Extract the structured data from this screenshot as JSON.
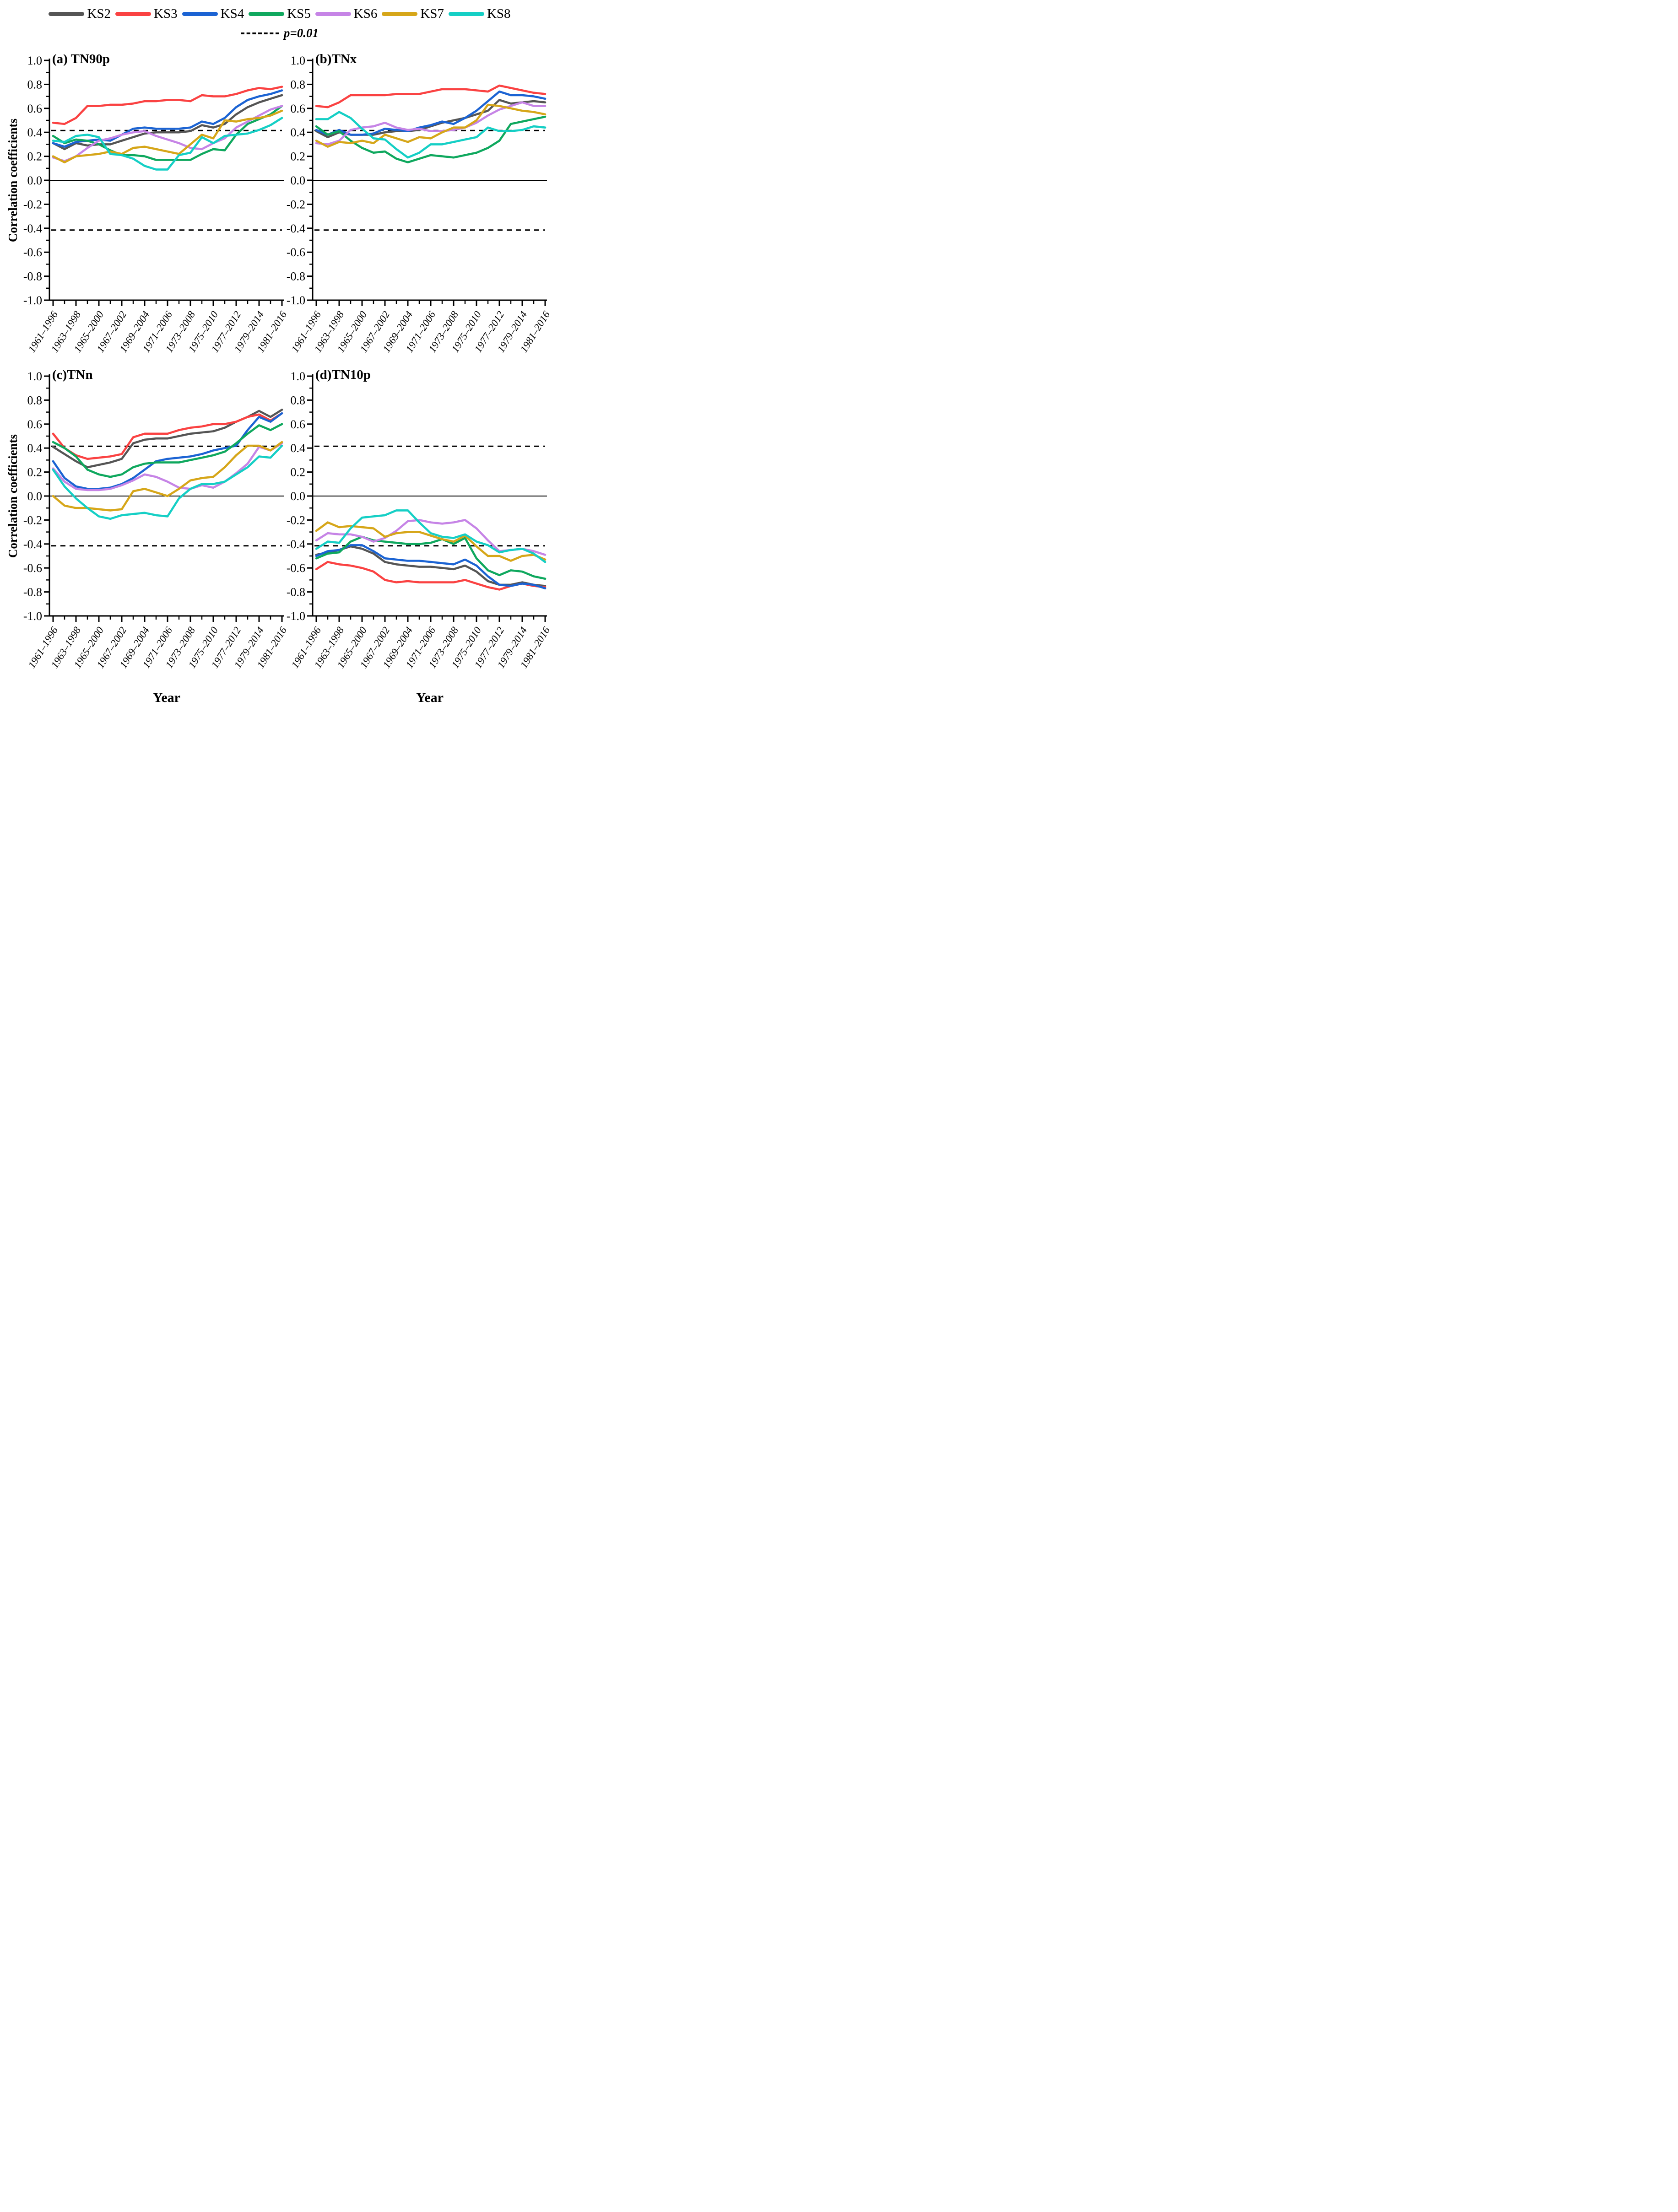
{
  "legend": {
    "series": [
      {
        "label": "KS2",
        "color": "#555555"
      },
      {
        "label": "KS3",
        "color": "#FA4242"
      },
      {
        "label": "KS4",
        "color": "#1B63D3"
      },
      {
        "label": "KS5",
        "color": "#0FA85E"
      },
      {
        "label": "KS6",
        "color": "#C684E6"
      },
      {
        "label": "KS7",
        "color": "#D6A619"
      },
      {
        "label": "KS8",
        "color": "#15CFC5"
      }
    ],
    "significance": {
      "label": "p=0.01",
      "color": "#000000"
    }
  },
  "axes": {
    "ylabel": "Correlation coefficients",
    "xlabel": "Year",
    "ylim": [
      -1.0,
      1.0
    ],
    "ytick_step": 0.2,
    "ytick_labels": [
      "1.0",
      "0.8",
      "0.6",
      "0.4",
      "0.2",
      "0.0",
      "-0.2",
      "-0.4",
      "-0.6",
      "-0.8",
      "-1.0"
    ],
    "xtick_labels": [
      "1961–1996",
      "1963–1998",
      "1965–2000",
      "1967–2002",
      "1969–2004",
      "1971–2006",
      "1973–2008",
      "1975–2010",
      "1977–2012",
      "1979–2014",
      "1981–2016"
    ],
    "significance_threshold": 0.415,
    "grid": false,
    "legend_position": "top"
  },
  "chart_data": [
    {
      "type": "line",
      "title": "(a) TN90p",
      "series": [
        {
          "name": "KS2",
          "values": [
            0.31,
            0.26,
            0.31,
            0.29,
            0.3,
            0.3,
            0.33,
            0.36,
            0.39,
            0.4,
            0.4,
            0.4,
            0.41,
            0.46,
            0.44,
            0.47,
            0.55,
            0.61,
            0.65,
            0.68,
            0.71
          ]
        },
        {
          "name": "KS3",
          "values": [
            0.48,
            0.47,
            0.52,
            0.62,
            0.62,
            0.63,
            0.63,
            0.64,
            0.66,
            0.66,
            0.67,
            0.67,
            0.66,
            0.71,
            0.7,
            0.7,
            0.72,
            0.75,
            0.77,
            0.76,
            0.78
          ]
        },
        {
          "name": "KS4",
          "values": [
            0.31,
            0.28,
            0.32,
            0.33,
            0.34,
            0.33,
            0.38,
            0.43,
            0.44,
            0.43,
            0.43,
            0.43,
            0.44,
            0.49,
            0.47,
            0.52,
            0.61,
            0.67,
            0.7,
            0.72,
            0.75
          ]
        },
        {
          "name": "KS5",
          "values": [
            0.37,
            0.31,
            0.34,
            0.33,
            0.3,
            0.25,
            0.21,
            0.21,
            0.2,
            0.17,
            0.17,
            0.17,
            0.17,
            0.22,
            0.26,
            0.25,
            0.38,
            0.47,
            0.51,
            0.55,
            0.62
          ]
        },
        {
          "name": "KS6",
          "values": [
            0.19,
            0.16,
            0.2,
            0.27,
            0.33,
            0.35,
            0.38,
            0.4,
            0.41,
            0.37,
            0.34,
            0.31,
            0.27,
            0.26,
            0.31,
            0.35,
            0.44,
            0.49,
            0.54,
            0.59,
            0.62
          ]
        },
        {
          "name": "KS7",
          "values": [
            0.2,
            0.15,
            0.2,
            0.21,
            0.22,
            0.24,
            0.22,
            0.27,
            0.28,
            0.26,
            0.24,
            0.22,
            0.3,
            0.38,
            0.35,
            0.5,
            0.49,
            0.51,
            0.52,
            0.54,
            0.58
          ]
        },
        {
          "name": "KS8",
          "values": [
            0.33,
            0.32,
            0.37,
            0.38,
            0.36,
            0.22,
            0.21,
            0.18,
            0.12,
            0.09,
            0.09,
            0.21,
            0.23,
            0.36,
            0.31,
            0.37,
            0.38,
            0.39,
            0.42,
            0.46,
            0.52
          ]
        }
      ]
    },
    {
      "type": "line",
      "title": "(b)TNx",
      "series": [
        {
          "name": "KS2",
          "values": [
            0.41,
            0.36,
            0.4,
            0.38,
            0.38,
            0.38,
            0.4,
            0.41,
            0.41,
            0.42,
            0.45,
            0.48,
            0.5,
            0.52,
            0.55,
            0.58,
            0.67,
            0.64,
            0.65,
            0.66,
            0.65
          ]
        },
        {
          "name": "KS3",
          "values": [
            0.62,
            0.61,
            0.65,
            0.71,
            0.71,
            0.71,
            0.71,
            0.72,
            0.72,
            0.72,
            0.74,
            0.76,
            0.76,
            0.76,
            0.75,
            0.74,
            0.79,
            0.77,
            0.75,
            0.73,
            0.72
          ]
        },
        {
          "name": "KS4",
          "values": [
            0.42,
            0.38,
            0.42,
            0.38,
            0.38,
            0.39,
            0.43,
            0.42,
            0.41,
            0.44,
            0.46,
            0.49,
            0.47,
            0.52,
            0.58,
            0.66,
            0.74,
            0.71,
            0.71,
            0.7,
            0.68
          ]
        },
        {
          "name": "KS5",
          "values": [
            0.45,
            0.38,
            0.41,
            0.33,
            0.27,
            0.23,
            0.24,
            0.18,
            0.15,
            0.18,
            0.21,
            0.2,
            0.19,
            0.21,
            0.23,
            0.27,
            0.33,
            0.47,
            0.49,
            0.51,
            0.53
          ]
        },
        {
          "name": "KS6",
          "values": [
            0.31,
            0.3,
            0.33,
            0.42,
            0.44,
            0.45,
            0.48,
            0.44,
            0.42,
            0.43,
            0.41,
            0.41,
            0.42,
            0.44,
            0.48,
            0.54,
            0.59,
            0.62,
            0.65,
            0.62,
            0.62
          ]
        },
        {
          "name": "KS7",
          "values": [
            0.33,
            0.28,
            0.32,
            0.31,
            0.33,
            0.31,
            0.38,
            0.35,
            0.32,
            0.36,
            0.35,
            0.4,
            0.44,
            0.44,
            0.5,
            0.63,
            0.62,
            0.6,
            0.58,
            0.57,
            0.55
          ]
        },
        {
          "name": "KS8",
          "values": [
            0.51,
            0.51,
            0.57,
            0.52,
            0.43,
            0.35,
            0.34,
            0.26,
            0.19,
            0.23,
            0.3,
            0.3,
            0.32,
            0.34,
            0.36,
            0.44,
            0.41,
            0.41,
            0.42,
            0.45,
            0.44
          ]
        }
      ]
    },
    {
      "type": "line",
      "title": "(c)TNn",
      "series": [
        {
          "name": "KS2",
          "values": [
            0.41,
            0.35,
            0.29,
            0.24,
            0.26,
            0.28,
            0.31,
            0.44,
            0.47,
            0.48,
            0.48,
            0.5,
            0.52,
            0.53,
            0.54,
            0.57,
            0.62,
            0.66,
            0.71,
            0.66,
            0.72
          ]
        },
        {
          "name": "KS3",
          "values": [
            0.52,
            0.4,
            0.34,
            0.31,
            0.32,
            0.33,
            0.35,
            0.49,
            0.52,
            0.52,
            0.52,
            0.55,
            0.57,
            0.58,
            0.6,
            0.6,
            0.62,
            0.66,
            0.68,
            0.63,
            0.69
          ]
        },
        {
          "name": "KS4",
          "values": [
            0.29,
            0.15,
            0.08,
            0.06,
            0.06,
            0.07,
            0.1,
            0.15,
            0.22,
            0.29,
            0.31,
            0.32,
            0.33,
            0.35,
            0.38,
            0.4,
            0.42,
            0.55,
            0.66,
            0.62,
            0.69
          ]
        },
        {
          "name": "KS5",
          "values": [
            0.45,
            0.4,
            0.33,
            0.22,
            0.18,
            0.16,
            0.18,
            0.24,
            0.27,
            0.28,
            0.28,
            0.28,
            0.3,
            0.32,
            0.34,
            0.37,
            0.44,
            0.52,
            0.59,
            0.55,
            0.6
          ]
        },
        {
          "name": "KS6",
          "values": [
            0.23,
            0.12,
            0.06,
            0.05,
            0.05,
            0.06,
            0.09,
            0.13,
            0.18,
            0.16,
            0.12,
            0.07,
            0.06,
            0.09,
            0.07,
            0.12,
            0.19,
            0.27,
            0.41,
            0.38,
            0.44
          ]
        },
        {
          "name": "KS7",
          "values": [
            0.0,
            -0.08,
            -0.1,
            -0.1,
            -0.11,
            -0.12,
            -0.11,
            0.04,
            0.06,
            0.03,
            0.0,
            0.06,
            0.13,
            0.15,
            0.16,
            0.24,
            0.34,
            0.42,
            0.42,
            0.38,
            0.45
          ]
        },
        {
          "name": "KS8",
          "values": [
            0.22,
            0.08,
            -0.02,
            -0.1,
            -0.17,
            -0.19,
            -0.16,
            -0.15,
            -0.14,
            -0.16,
            -0.17,
            -0.02,
            0.06,
            0.1,
            0.1,
            0.12,
            0.18,
            0.24,
            0.33,
            0.32,
            0.42
          ]
        }
      ]
    },
    {
      "type": "line",
      "title": "(d)TN10p",
      "series": [
        {
          "name": "KS2",
          "values": [
            -0.49,
            -0.47,
            -0.45,
            -0.42,
            -0.44,
            -0.48,
            -0.55,
            -0.57,
            -0.58,
            -0.59,
            -0.59,
            -0.6,
            -0.61,
            -0.58,
            -0.63,
            -0.71,
            -0.74,
            -0.74,
            -0.72,
            -0.74,
            -0.75
          ]
        },
        {
          "name": "KS3",
          "values": [
            -0.61,
            -0.55,
            -0.57,
            -0.58,
            -0.6,
            -0.63,
            -0.7,
            -0.72,
            -0.71,
            -0.72,
            -0.72,
            -0.72,
            -0.72,
            -0.7,
            -0.73,
            -0.76,
            -0.78,
            -0.75,
            -0.73,
            -0.75,
            -0.76
          ]
        },
        {
          "name": "KS4",
          "values": [
            -0.5,
            -0.46,
            -0.45,
            -0.41,
            -0.41,
            -0.46,
            -0.52,
            -0.53,
            -0.54,
            -0.54,
            -0.55,
            -0.56,
            -0.57,
            -0.53,
            -0.58,
            -0.67,
            -0.74,
            -0.75,
            -0.73,
            -0.74,
            -0.77
          ]
        },
        {
          "name": "KS5",
          "values": [
            -0.52,
            -0.48,
            -0.47,
            -0.38,
            -0.34,
            -0.37,
            -0.38,
            -0.39,
            -0.4,
            -0.4,
            -0.39,
            -0.36,
            -0.4,
            -0.35,
            -0.52,
            -0.62,
            -0.66,
            -0.62,
            -0.63,
            -0.67,
            -0.69
          ]
        },
        {
          "name": "KS6",
          "values": [
            -0.37,
            -0.31,
            -0.32,
            -0.32,
            -0.34,
            -0.38,
            -0.35,
            -0.29,
            -0.21,
            -0.2,
            -0.22,
            -0.23,
            -0.22,
            -0.2,
            -0.27,
            -0.37,
            -0.46,
            -0.45,
            -0.44,
            -0.46,
            -0.49
          ]
        },
        {
          "name": "KS7",
          "values": [
            -0.29,
            -0.22,
            -0.26,
            -0.25,
            -0.26,
            -0.27,
            -0.34,
            -0.31,
            -0.3,
            -0.3,
            -0.33,
            -0.36,
            -0.38,
            -0.33,
            -0.42,
            -0.5,
            -0.5,
            -0.54,
            -0.5,
            -0.49,
            -0.53
          ]
        },
        {
          "name": "KS8",
          "values": [
            -0.44,
            -0.38,
            -0.39,
            -0.27,
            -0.18,
            -0.17,
            -0.16,
            -0.12,
            -0.12,
            -0.22,
            -0.31,
            -0.34,
            -0.35,
            -0.32,
            -0.38,
            -0.41,
            -0.47,
            -0.45,
            -0.44,
            -0.48,
            -0.55
          ]
        }
      ]
    }
  ]
}
